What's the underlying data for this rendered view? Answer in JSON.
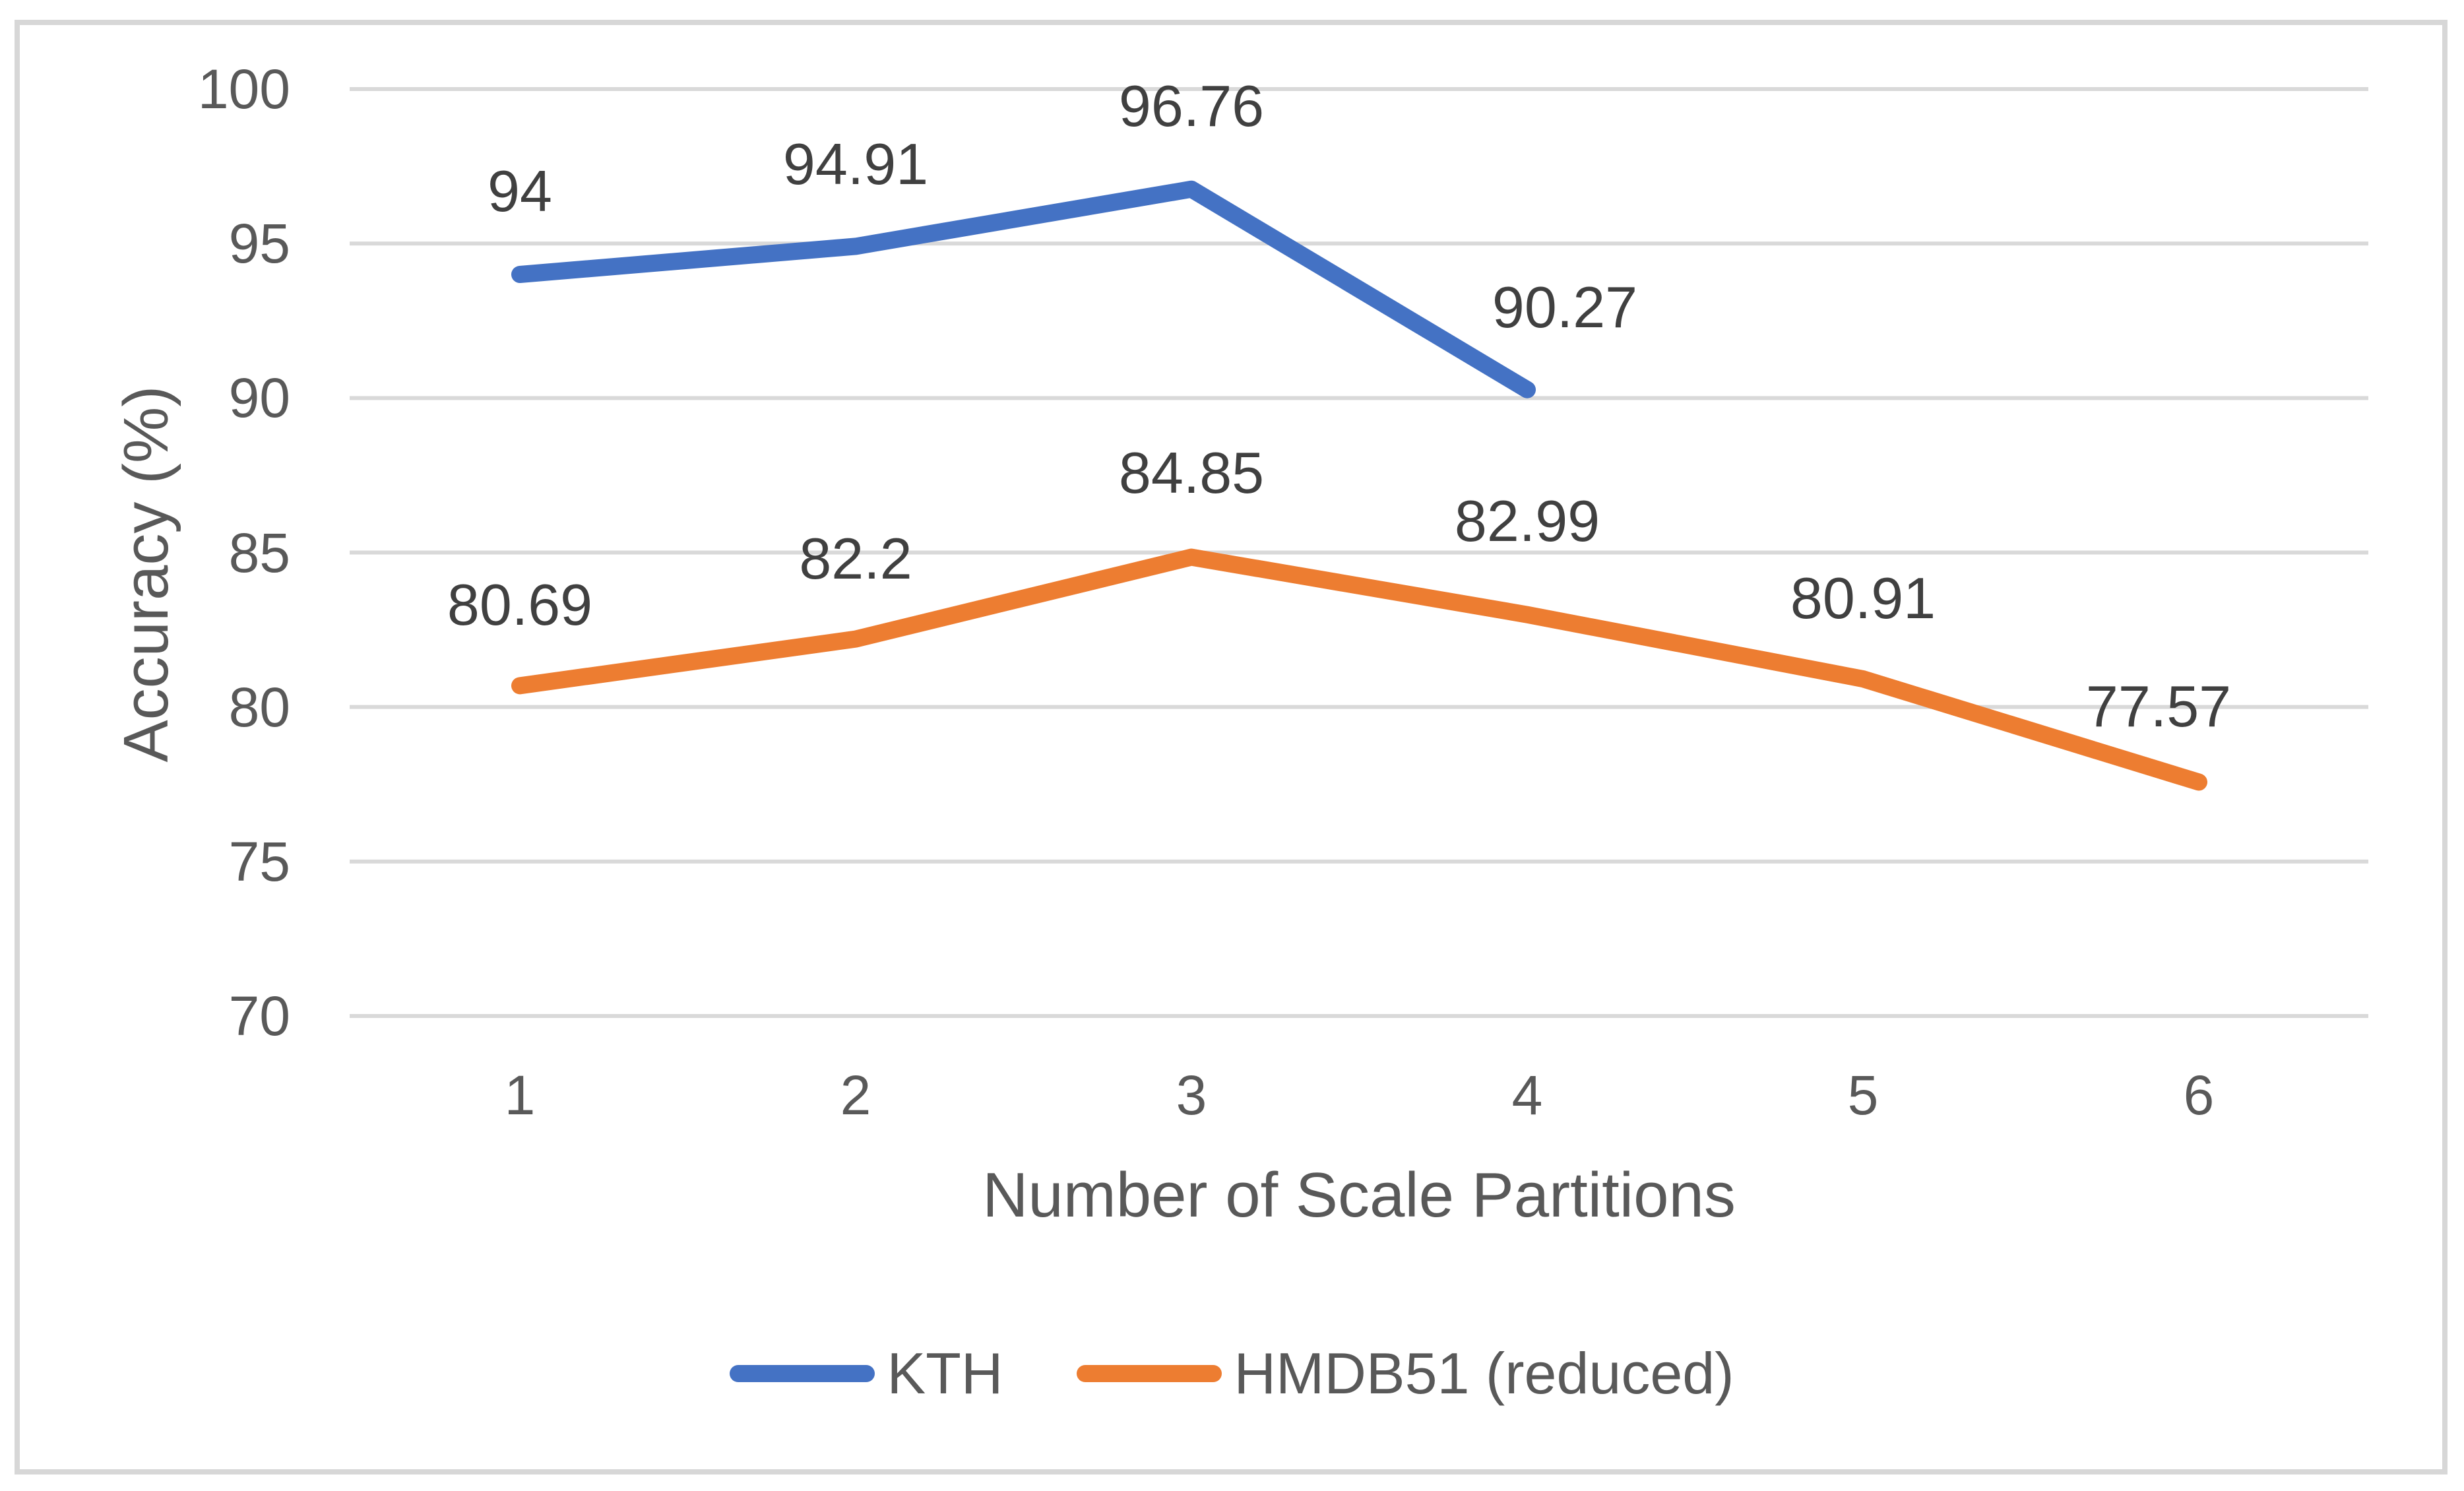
{
  "chart_data": {
    "type": "line",
    "categories": [
      "1",
      "2",
      "3",
      "4",
      "5",
      "6"
    ],
    "xlabel": "Number of Scale Partitions",
    "ylabel": "Accuracy (%)",
    "y_axis": {
      "ticks": [
        "100",
        "95",
        "90",
        "85",
        "80",
        "75",
        "70"
      ],
      "range": [
        70,
        100
      ]
    },
    "series": [
      {
        "name": "KTH",
        "color": "#4472C4",
        "values": [
          94,
          94.91,
          96.76,
          90.27
        ],
        "labels": [
          "94",
          "94.91",
          "96.76",
          "90.27"
        ],
        "label_offsets": [
          [
            0,
            -126
          ],
          [
            0,
            -124
          ],
          [
            0,
            -126
          ],
          [
            57,
            -125
          ]
        ]
      },
      {
        "name": "HMDB51 (reduced)",
        "color": "#ED7D31",
        "values": [
          80.69,
          82.2,
          84.85,
          82.99,
          80.91,
          77.57
        ],
        "labels": [
          "80.69",
          "82.2",
          "84.85",
          "82.99",
          "80.91",
          "77.57"
        ],
        "label_offsets": [
          [
            0,
            -122
          ],
          [
            0,
            -122
          ],
          [
            0,
            -128
          ],
          [
            0,
            -142
          ],
          [
            0,
            -122
          ],
          [
            -61,
            -114
          ]
        ]
      }
    ],
    "legend": {
      "position": "bottom",
      "entries": [
        {
          "label": "KTH",
          "color": "#4472C4"
        },
        {
          "label": "HMDB51 (reduced)",
          "color": "#ED7D31"
        }
      ]
    },
    "grid": true,
    "layout": {
      "plot_left": 530,
      "plot_right": 3590,
      "y_top": 135,
      "y_bottom": 1540,
      "x_first": 788,
      "x_step": 509,
      "line_width": 26,
      "gridline_width": 6
    },
    "colors": {
      "gridline": "#D9D9D9",
      "frame": "#D7D7D7",
      "tick_text": "#595959",
      "data_label_text": "#404040"
    }
  }
}
